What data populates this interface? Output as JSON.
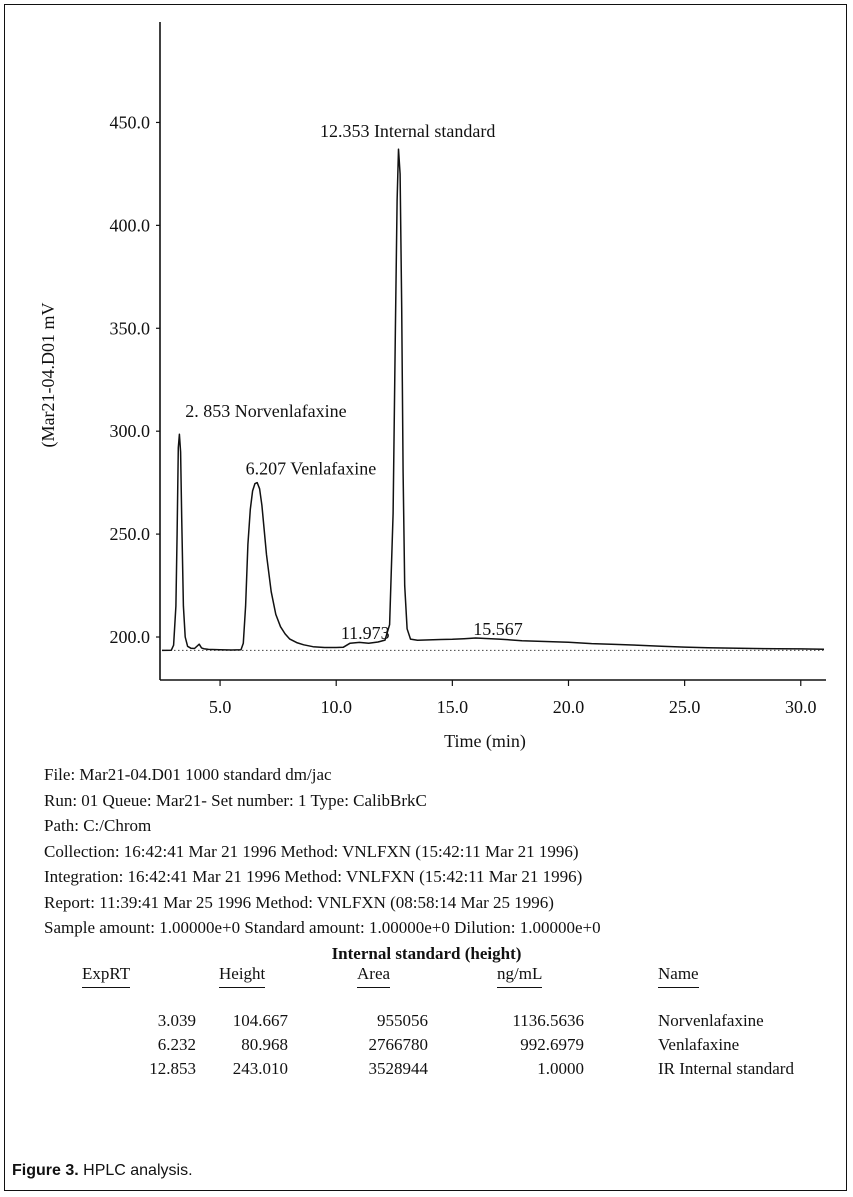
{
  "chart_data": {
    "type": "line",
    "title": "",
    "xlabel": "Time (min)",
    "ylabel": "(Mar21-04.D01 mV",
    "xlim": [
      2.5,
      31.0
    ],
    "ylim": [
      183,
      475
    ],
    "x_ticks": [
      5.0,
      10.0,
      15.0,
      20.0,
      25.0,
      30.0
    ],
    "x_tick_labels": [
      "5.0",
      "10.0",
      "15.0",
      "20.0",
      "25.0",
      "30.0"
    ],
    "y_ticks": [
      200.0,
      250.0,
      300.0,
      350.0,
      400.0,
      450.0
    ],
    "y_tick_labels": [
      "200.0",
      "250.0",
      "300.0",
      "350.0",
      "400.0",
      "450.0"
    ],
    "grid": false,
    "series": [
      {
        "x": [
          2.5,
          2.9,
          3.0,
          3.1,
          3.15,
          3.2,
          3.25,
          3.3,
          3.35,
          3.42,
          3.5,
          3.6,
          3.75,
          3.9,
          4.1,
          4.2,
          4.3,
          4.5,
          5.0,
          5.5,
          5.9,
          6.0,
          6.1,
          6.2,
          6.3,
          6.4,
          6.5,
          6.6,
          6.7,
          6.8,
          6.9,
          7.0,
          7.2,
          7.4,
          7.6,
          7.8,
          8.0,
          8.3,
          8.6,
          9.0,
          9.5,
          10.0,
          10.3,
          10.6,
          11.0,
          11.4,
          11.8,
          12.1,
          12.3,
          12.45,
          12.55,
          12.62,
          12.68,
          12.75,
          12.82,
          12.88,
          12.95,
          13.05,
          13.2,
          13.5,
          14.0,
          14.5,
          15.0,
          15.5,
          16.0,
          17.0,
          18.0,
          19.0,
          20.0,
          21.0,
          22.0,
          23.0,
          24.0,
          25.0,
          26.0,
          27.0,
          28.0,
          29.0,
          30.0,
          31.0
        ],
        "y": [
          193.5,
          193.6,
          196.0,
          215.0,
          250.0,
          292.0,
          298.5,
          290.0,
          258.0,
          215.0,
          200.0,
          195.5,
          194.5,
          194.4,
          196.5,
          194.7,
          194.3,
          194.0,
          193.8,
          193.7,
          193.8,
          197.0,
          215.0,
          245.0,
          262.0,
          271.0,
          274.5,
          275.0,
          272.0,
          264.0,
          252.0,
          240.0,
          222.0,
          211.0,
          205.0,
          201.5,
          199.0,
          197.3,
          196.2,
          195.3,
          194.9,
          194.9,
          195.0,
          197.0,
          197.4,
          197.0,
          197.6,
          198.5,
          206.0,
          260.0,
          350.0,
          412.0,
          437.0,
          425.0,
          360.0,
          280.0,
          225.0,
          204.0,
          199.0,
          198.4,
          198.6,
          198.8,
          198.9,
          199.2,
          199.5,
          199.0,
          198.2,
          197.8,
          197.5,
          196.8,
          196.4,
          196.0,
          195.5,
          195.1,
          194.8,
          194.6,
          194.4,
          194.3,
          194.2,
          194.1
        ]
      }
    ],
    "baseline": 193.5,
    "annotations": [
      {
        "text": "2. 853 Norvenlafaxine",
        "x": 3.5,
        "y": 307
      },
      {
        "text": "6.207 Venlafaxine",
        "x": 6.1,
        "y": 279
      },
      {
        "text": "11.973",
        "x": 10.2,
        "y": 199
      },
      {
        "text": "12.353 Internal standard",
        "x": 9.3,
        "y": 443
      },
      {
        "text": "15.567",
        "x": 15.9,
        "y": 201
      }
    ]
  },
  "metadata_lines": [
    "File: Mar21-04.D01 1000 standard dm/jac",
    "Run: 01 Queue: Mar21- Set number: 1 Type: CalibBrkC",
    "Path: C:/Chrom",
    "Collection: 16:42:41 Mar 21 1996 Method: VNLFXN (15:42:11 Mar 21 1996)",
    "Integration: 16:42:41 Mar 21 1996 Method: VNLFXN (15:42:11 Mar 21 1996)",
    "Report: 11:39:41 Mar 25 1996 Method: VNLFXN (08:58:14 Mar 25 1996)",
    "Sample amount: 1.00000e+0 Standard amount: 1.00000e+0 Dilution: 1.00000e+0"
  ],
  "results_table": {
    "title": "Internal standard (height)",
    "headers": [
      "ExpRT",
      "Height",
      "Area",
      "ng/mL",
      "Name"
    ],
    "rows": [
      [
        "3.039",
        "104.667",
        "955056",
        "1136.5636",
        "Norvenlafaxine"
      ],
      [
        "6.232",
        "80.968",
        "2766780",
        "992.6979",
        "Venlafaxine"
      ],
      [
        "12.853",
        "243.010",
        "3528944",
        "1.0000",
        "IR Internal standard"
      ]
    ]
  },
  "caption": {
    "label": "Figure 3.",
    "text": " HPLC analysis."
  }
}
